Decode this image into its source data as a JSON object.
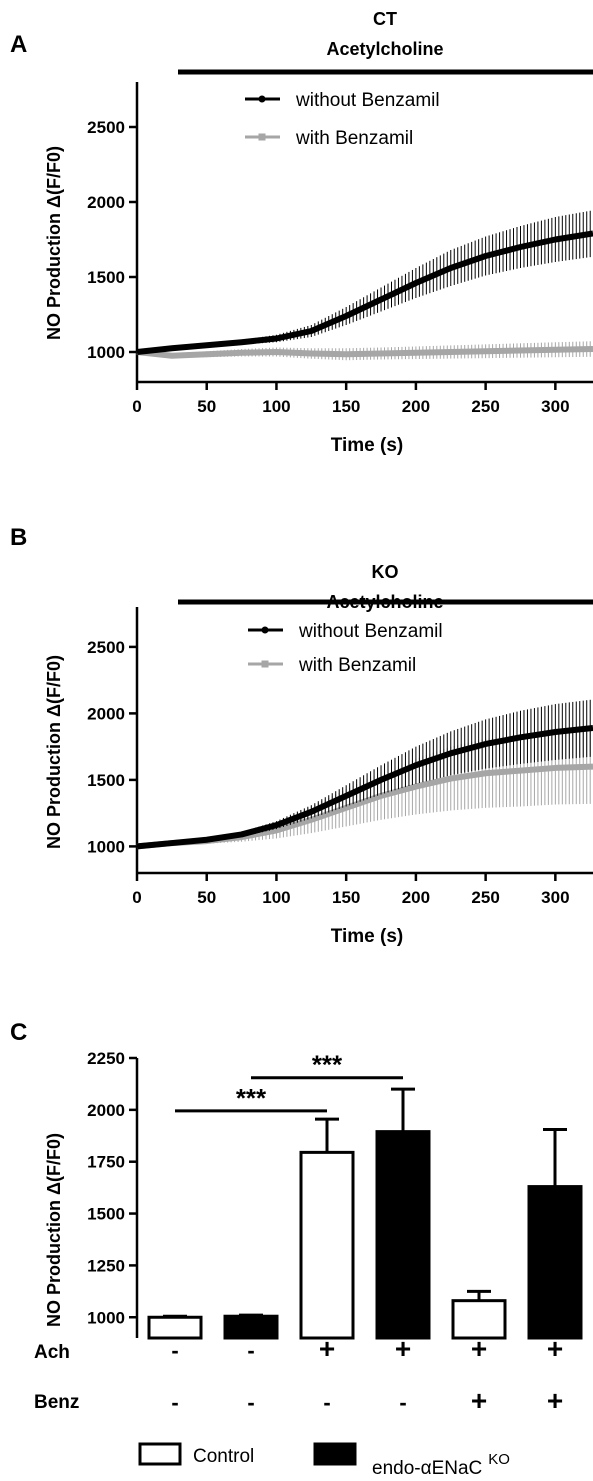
{
  "chart_data": [
    {
      "panel": "A",
      "type": "line",
      "title": "CT",
      "subtitle": "Acetylcholine",
      "ylabel": "NO Production Δ(F/F0)",
      "xlabel": "Time (s)",
      "xlim": [
        0,
        327
      ],
      "ylim": [
        800,
        2800
      ],
      "xticks": [
        0,
        50,
        100,
        150,
        200,
        250,
        300
      ],
      "yticks": [
        1000,
        1500,
        2000,
        2500
      ],
      "stimulus_bar": [
        30,
        327
      ],
      "legend_position": "top-right",
      "series": [
        {
          "name": "without Benzamil",
          "color": "#000000",
          "x": [
            0,
            25,
            50,
            75,
            100,
            125,
            150,
            175,
            200,
            225,
            250,
            275,
            300,
            327
          ],
          "y": [
            1000,
            1025,
            1045,
            1065,
            1090,
            1140,
            1240,
            1350,
            1460,
            1560,
            1640,
            1700,
            1750,
            1790
          ],
          "err": [
            5,
            8,
            10,
            15,
            25,
            40,
            60,
            80,
            100,
            120,
            130,
            140,
            150,
            155
          ]
        },
        {
          "name": "with Benzamil",
          "color": "#a6a6a6",
          "x": [
            0,
            25,
            50,
            75,
            100,
            125,
            150,
            175,
            200,
            225,
            250,
            275,
            300,
            327
          ],
          "y": [
            1000,
            975,
            985,
            995,
            1000,
            990,
            985,
            990,
            995,
            1000,
            1005,
            1010,
            1015,
            1020
          ],
          "err": [
            5,
            15,
            20,
            25,
            30,
            35,
            40,
            40,
            42,
            44,
            46,
            48,
            50,
            52
          ]
        }
      ]
    },
    {
      "panel": "B",
      "type": "line",
      "title": "KO",
      "subtitle": "Acetylcholine",
      "ylabel": "NO Production Δ(F/F0)",
      "xlabel": "Time (s)",
      "xlim": [
        0,
        327
      ],
      "ylim": [
        800,
        2800
      ],
      "xticks": [
        0,
        50,
        100,
        150,
        200,
        250,
        300
      ],
      "yticks": [
        1000,
        1500,
        2000,
        2500
      ],
      "stimulus_bar": [
        30,
        327
      ],
      "legend_position": "top-right",
      "series": [
        {
          "name": "without Benzamil",
          "color": "#000000",
          "x": [
            0,
            25,
            50,
            75,
            100,
            125,
            150,
            175,
            200,
            225,
            250,
            275,
            300,
            327
          ],
          "y": [
            1000,
            1025,
            1050,
            1090,
            1160,
            1260,
            1380,
            1500,
            1610,
            1700,
            1770,
            1820,
            1860,
            1890
          ],
          "err": [
            5,
            8,
            12,
            18,
            30,
            50,
            80,
            110,
            140,
            165,
            185,
            200,
            210,
            215
          ]
        },
        {
          "name": "with Benzamil",
          "color": "#a6a6a6",
          "x": [
            0,
            25,
            50,
            75,
            100,
            125,
            150,
            175,
            200,
            225,
            250,
            275,
            300,
            327
          ],
          "y": [
            1000,
            1025,
            1040,
            1070,
            1120,
            1200,
            1290,
            1380,
            1450,
            1510,
            1550,
            1570,
            1590,
            1600
          ],
          "err": [
            5,
            10,
            20,
            35,
            60,
            100,
            140,
            180,
            210,
            240,
            260,
            270,
            275,
            280
          ]
        }
      ]
    },
    {
      "panel": "C",
      "type": "bar",
      "ylabel": "NO Production Δ(F/F0)",
      "ylim": [
        900,
        2250
      ],
      "yticks": [
        1000,
        1250,
        1500,
        1750,
        2000,
        2250
      ],
      "bars": [
        {
          "group": "Control",
          "value": 1000,
          "err": 5,
          "ach": "-",
          "benz": "-"
        },
        {
          "group": "endo-αENaC KO",
          "value": 1005,
          "err": 5,
          "ach": "-",
          "benz": "-"
        },
        {
          "group": "Control",
          "value": 1795,
          "err": 160,
          "ach": "+",
          "benz": "-"
        },
        {
          "group": "endo-αENaC KO",
          "value": 1895,
          "err": 205,
          "ach": "+",
          "benz": "-"
        },
        {
          "group": "Control",
          "value": 1080,
          "err": 45,
          "ach": "+",
          "benz": "+"
        },
        {
          "group": "endo-αENaC KO",
          "value": 1630,
          "err": 275,
          "ach": "+",
          "benz": "+"
        }
      ],
      "row_labels": {
        "ach": "Ach",
        "benz": "Benz"
      },
      "significance": [
        {
          "from": 0,
          "to": 2,
          "label": "***",
          "y": 1995
        },
        {
          "from": 1,
          "to": 3,
          "label": "***",
          "y": 2155
        }
      ],
      "legend": [
        {
          "label": "Control",
          "fill": "#ffffff"
        },
        {
          "label": "endo-αENaC",
          "sup": "KO",
          "fill": "#000000"
        }
      ]
    }
  ],
  "panel_labels": [
    "A",
    "B",
    "C"
  ]
}
